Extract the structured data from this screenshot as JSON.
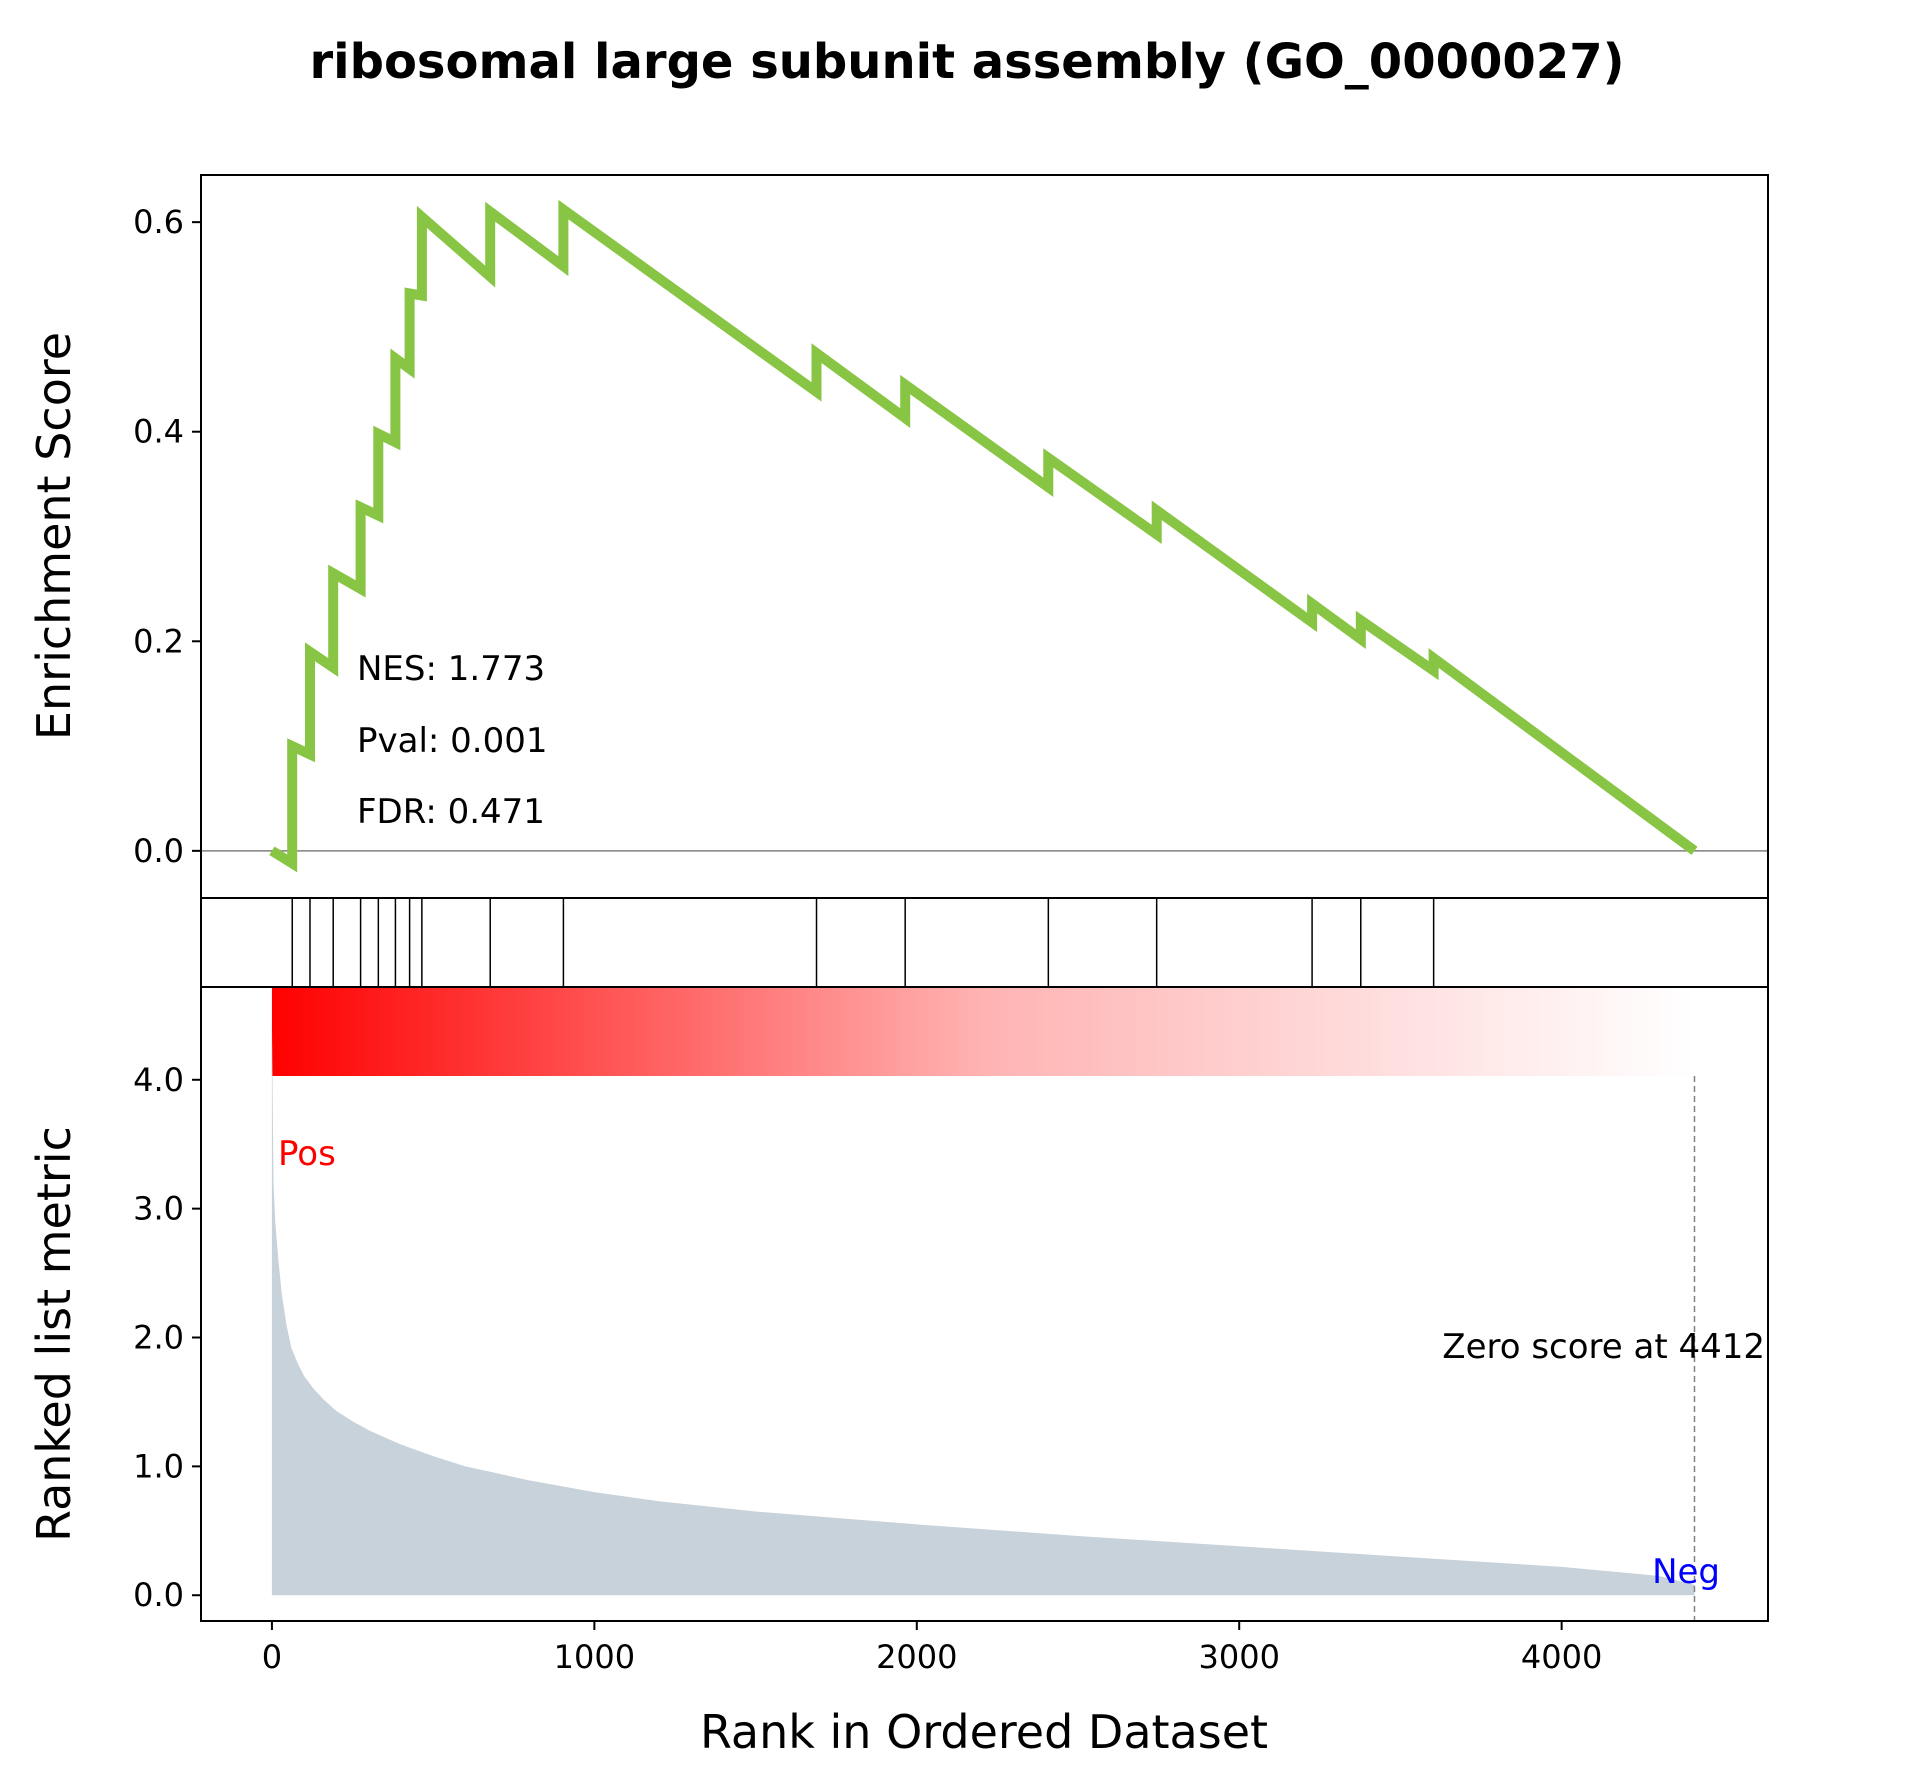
{
  "chart_data": {
    "type": "line",
    "title": "ribosomal large subunit assembly (GO_0000027)",
    "xlabel": "Rank in Ordered Dataset",
    "xlim": [
      -220,
      4640
    ],
    "xticks": [
      0,
      1000,
      2000,
      3000,
      4000
    ],
    "xtick_labels": [
      "0",
      "1000",
      "2000",
      "3000",
      "4000"
    ],
    "es_panel": {
      "ylabel": "Enrichment Score",
      "ylim": [
        -0.045,
        0.645
      ],
      "yticks": [
        0.0,
        0.2,
        0.4,
        0.6
      ],
      "ytick_labels": [
        "0.0",
        "0.2",
        "0.4",
        "0.6"
      ],
      "line_color": "#88c544",
      "zero_line_color": "#808080",
      "series": {
        "x": [
          0,
          63,
          63,
          118,
          118,
          190,
          190,
          275,
          275,
          330,
          330,
          383,
          383,
          427,
          427,
          465,
          465,
          677,
          677,
          904,
          904,
          1689,
          1689,
          1964,
          1964,
          2408,
          2408,
          2744,
          2744,
          3226,
          3226,
          3377,
          3377,
          3603,
          3603,
          4412
        ],
        "y": [
          0.0,
          -0.012,
          0.1,
          0.092,
          0.19,
          0.175,
          0.265,
          0.25,
          0.328,
          0.32,
          0.398,
          0.39,
          0.47,
          0.46,
          0.532,
          0.53,
          0.605,
          0.548,
          0.61,
          0.558,
          0.612,
          0.438,
          0.475,
          0.413,
          0.445,
          0.347,
          0.375,
          0.302,
          0.325,
          0.218,
          0.236,
          0.202,
          0.22,
          0.172,
          0.184,
          0.0
        ]
      },
      "annotations": [
        "NES: 1.773",
        "Pval: 0.001",
        "FDR: 0.471"
      ]
    },
    "hits_panel": {
      "hit_ranks": [
        63,
        118,
        190,
        275,
        330,
        383,
        427,
        465,
        677,
        904,
        1689,
        1964,
        2408,
        2744,
        3226,
        3377,
        3603
      ]
    },
    "gradient_panel": {
      "color_start": "#ff0000",
      "color_end": "#ffffff",
      "range": [
        0,
        4412
      ]
    },
    "metric_panel": {
      "ylabel": "Ranked list metric",
      "ylim": [
        -0.2,
        4.72
      ],
      "yticks": [
        0.0,
        1.0,
        2.0,
        3.0,
        4.0
      ],
      "ytick_labels": [
        "0.0",
        "1.0",
        "2.0",
        "3.0",
        "4.0"
      ],
      "fill_color": "#c8d2da",
      "series": {
        "x": [
          0,
          5,
          10,
          20,
          30,
          45,
          60,
          80,
          100,
          130,
          160,
          200,
          250,
          300,
          400,
          500,
          600,
          800,
          1000,
          1200,
          1500,
          2000,
          2500,
          3000,
          3500,
          4000,
          4300,
          4412
        ],
        "y": [
          4.47,
          3.2,
          2.9,
          2.6,
          2.35,
          2.1,
          1.92,
          1.8,
          1.7,
          1.6,
          1.52,
          1.43,
          1.35,
          1.28,
          1.17,
          1.08,
          1.0,
          0.89,
          0.8,
          0.73,
          0.65,
          0.55,
          0.46,
          0.38,
          0.3,
          0.22,
          0.15,
          0.08
        ]
      },
      "pos_label": "Pos",
      "pos_color": "#ff0000",
      "neg_label": "Neg",
      "neg_color": "#0000ff",
      "zero_score_text": "Zero score at 4412",
      "zero_score_rank": 4412
    }
  }
}
